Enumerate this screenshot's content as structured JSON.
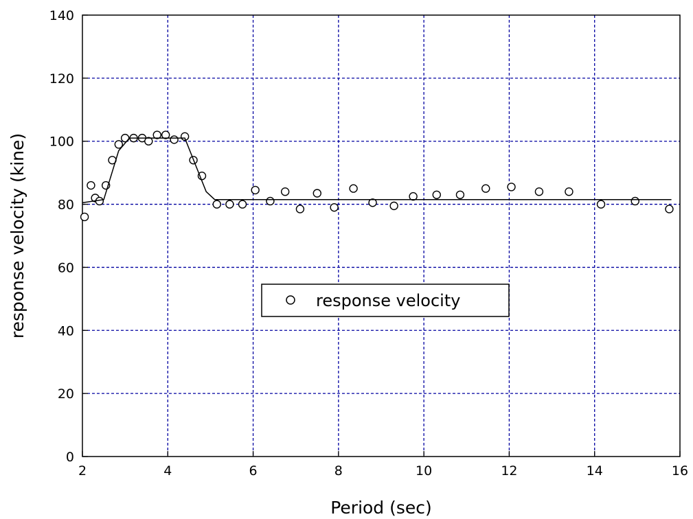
{
  "chart_data": {
    "type": "scatter",
    "xlabel": "Period (sec)",
    "ylabel": "response velocity (kine)",
    "xlim": [
      2,
      16
    ],
    "ylim": [
      0,
      140
    ],
    "xticks": [
      2,
      4,
      6,
      8,
      10,
      12,
      14,
      16
    ],
    "yticks": [
      0,
      20,
      40,
      60,
      80,
      100,
      120,
      140
    ],
    "grid": true,
    "legend_position": "center",
    "colors": {
      "grid": "#0000a0",
      "marks": "#000000",
      "line": "#000000"
    },
    "series": [
      {
        "name": "response velocity",
        "kind": "points",
        "marker": "open-circle",
        "x": [
          2.05,
          2.2,
          2.3,
          2.4,
          2.55,
          2.7,
          2.85,
          3.0,
          3.2,
          3.4,
          3.55,
          3.75,
          3.95,
          4.15,
          4.4,
          4.6,
          4.8,
          5.15,
          5.45,
          5.75,
          6.05,
          6.4,
          6.75,
          7.1,
          7.5,
          7.9,
          8.35,
          8.8,
          9.3,
          9.75,
          10.3,
          10.85,
          11.45,
          12.05,
          12.7,
          13.4,
          14.15,
          14.95,
          15.75
        ],
        "y": [
          76,
          86,
          82,
          81,
          86,
          94,
          99,
          101,
          101,
          101,
          100,
          102,
          102,
          100.5,
          101.5,
          94,
          89,
          80,
          80,
          80,
          84.5,
          81,
          84,
          78.5,
          83.5,
          79,
          85,
          80.5,
          79.5,
          82.5,
          83,
          83,
          85,
          85.5,
          84,
          84,
          80,
          81,
          78.5
        ]
      },
      {
        "kind": "line",
        "x": [
          2.0,
          2.5,
          2.85,
          3.1,
          4.4,
          4.9,
          5.1,
          15.8
        ],
        "y": [
          80.5,
          81.5,
          97,
          101,
          101,
          84,
          81.5,
          81.5
        ]
      }
    ],
    "legend": {
      "entries": [
        "response velocity"
      ]
    }
  }
}
